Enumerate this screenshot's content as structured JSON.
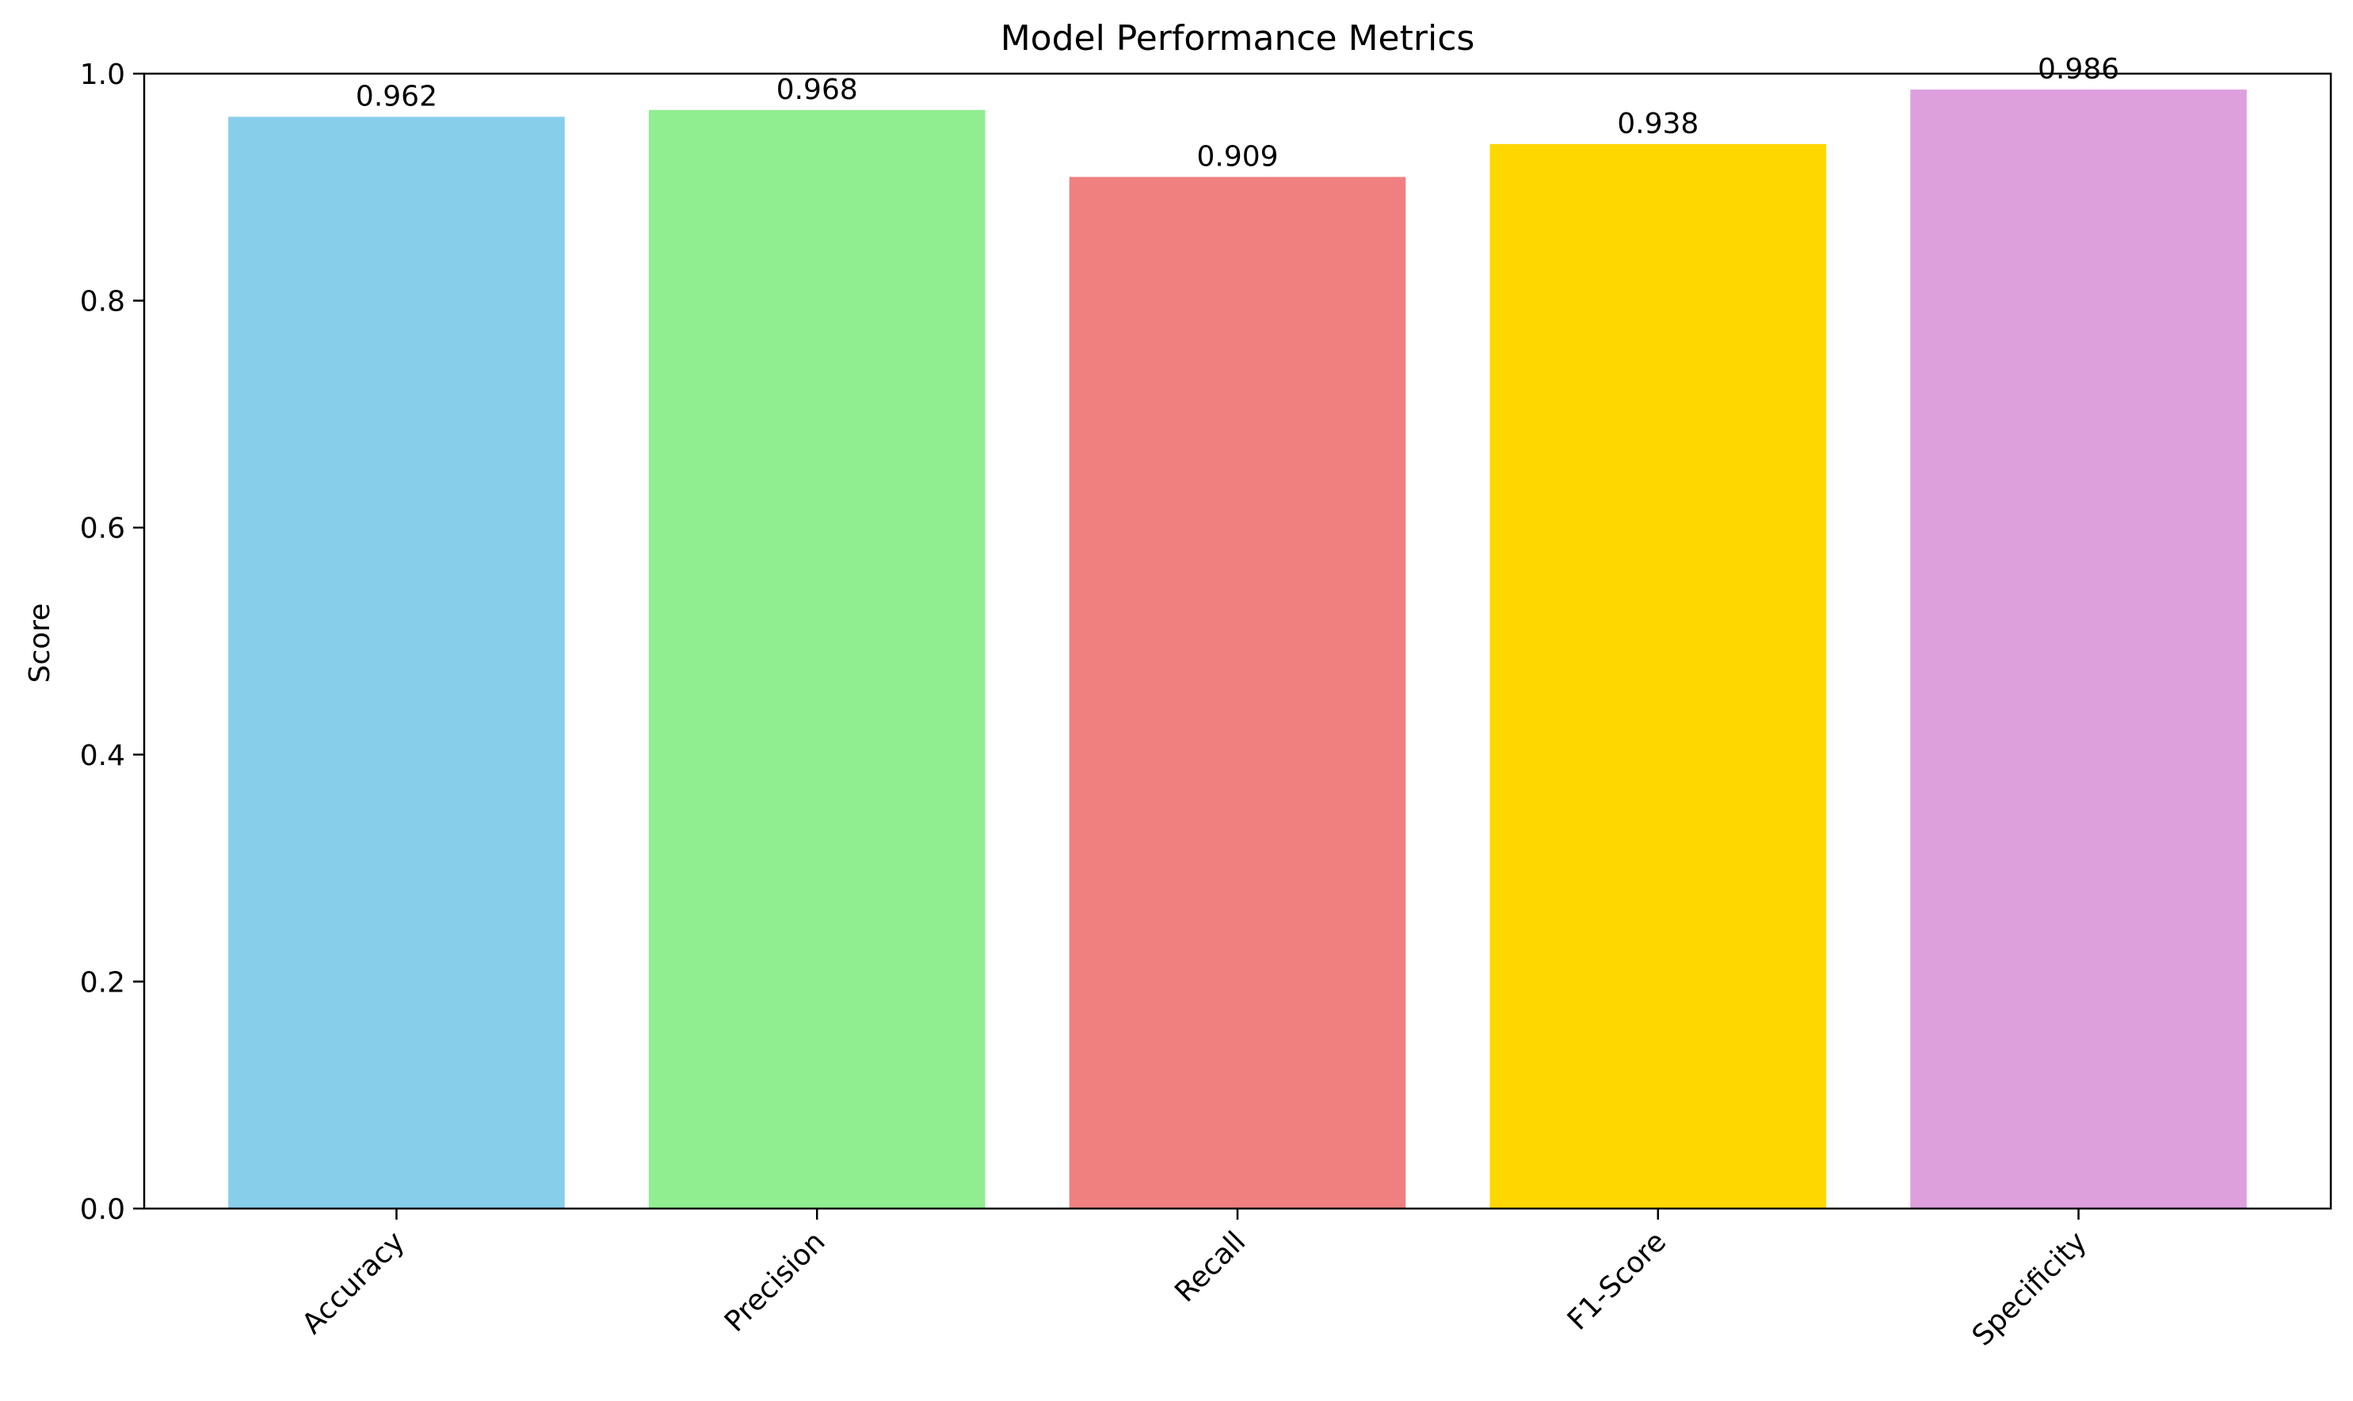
{
  "chart_data": {
    "type": "bar",
    "title": "Model Performance Metrics",
    "xlabel": "",
    "ylabel": "Score",
    "ylim": [
      0,
      1.0
    ],
    "yticks": [
      "0.0",
      "0.2",
      "0.4",
      "0.6",
      "0.8",
      "1.0"
    ],
    "ytick_values": [
      0,
      0.2,
      0.4,
      0.6,
      0.8,
      1.0
    ],
    "categories": [
      "Accuracy",
      "Precision",
      "Recall",
      "F1-Score",
      "Specificity"
    ],
    "values": [
      0.962,
      0.968,
      0.909,
      0.938,
      0.986
    ],
    "value_labels": [
      "0.962",
      "0.968",
      "0.909",
      "0.938",
      "0.986"
    ],
    "colors": [
      "#87ceeb",
      "#90ee90",
      "#f08080",
      "#ffd700",
      "#dda0dd"
    ],
    "grid": false,
    "legend": "none",
    "xtick_rotation_deg": 45
  }
}
